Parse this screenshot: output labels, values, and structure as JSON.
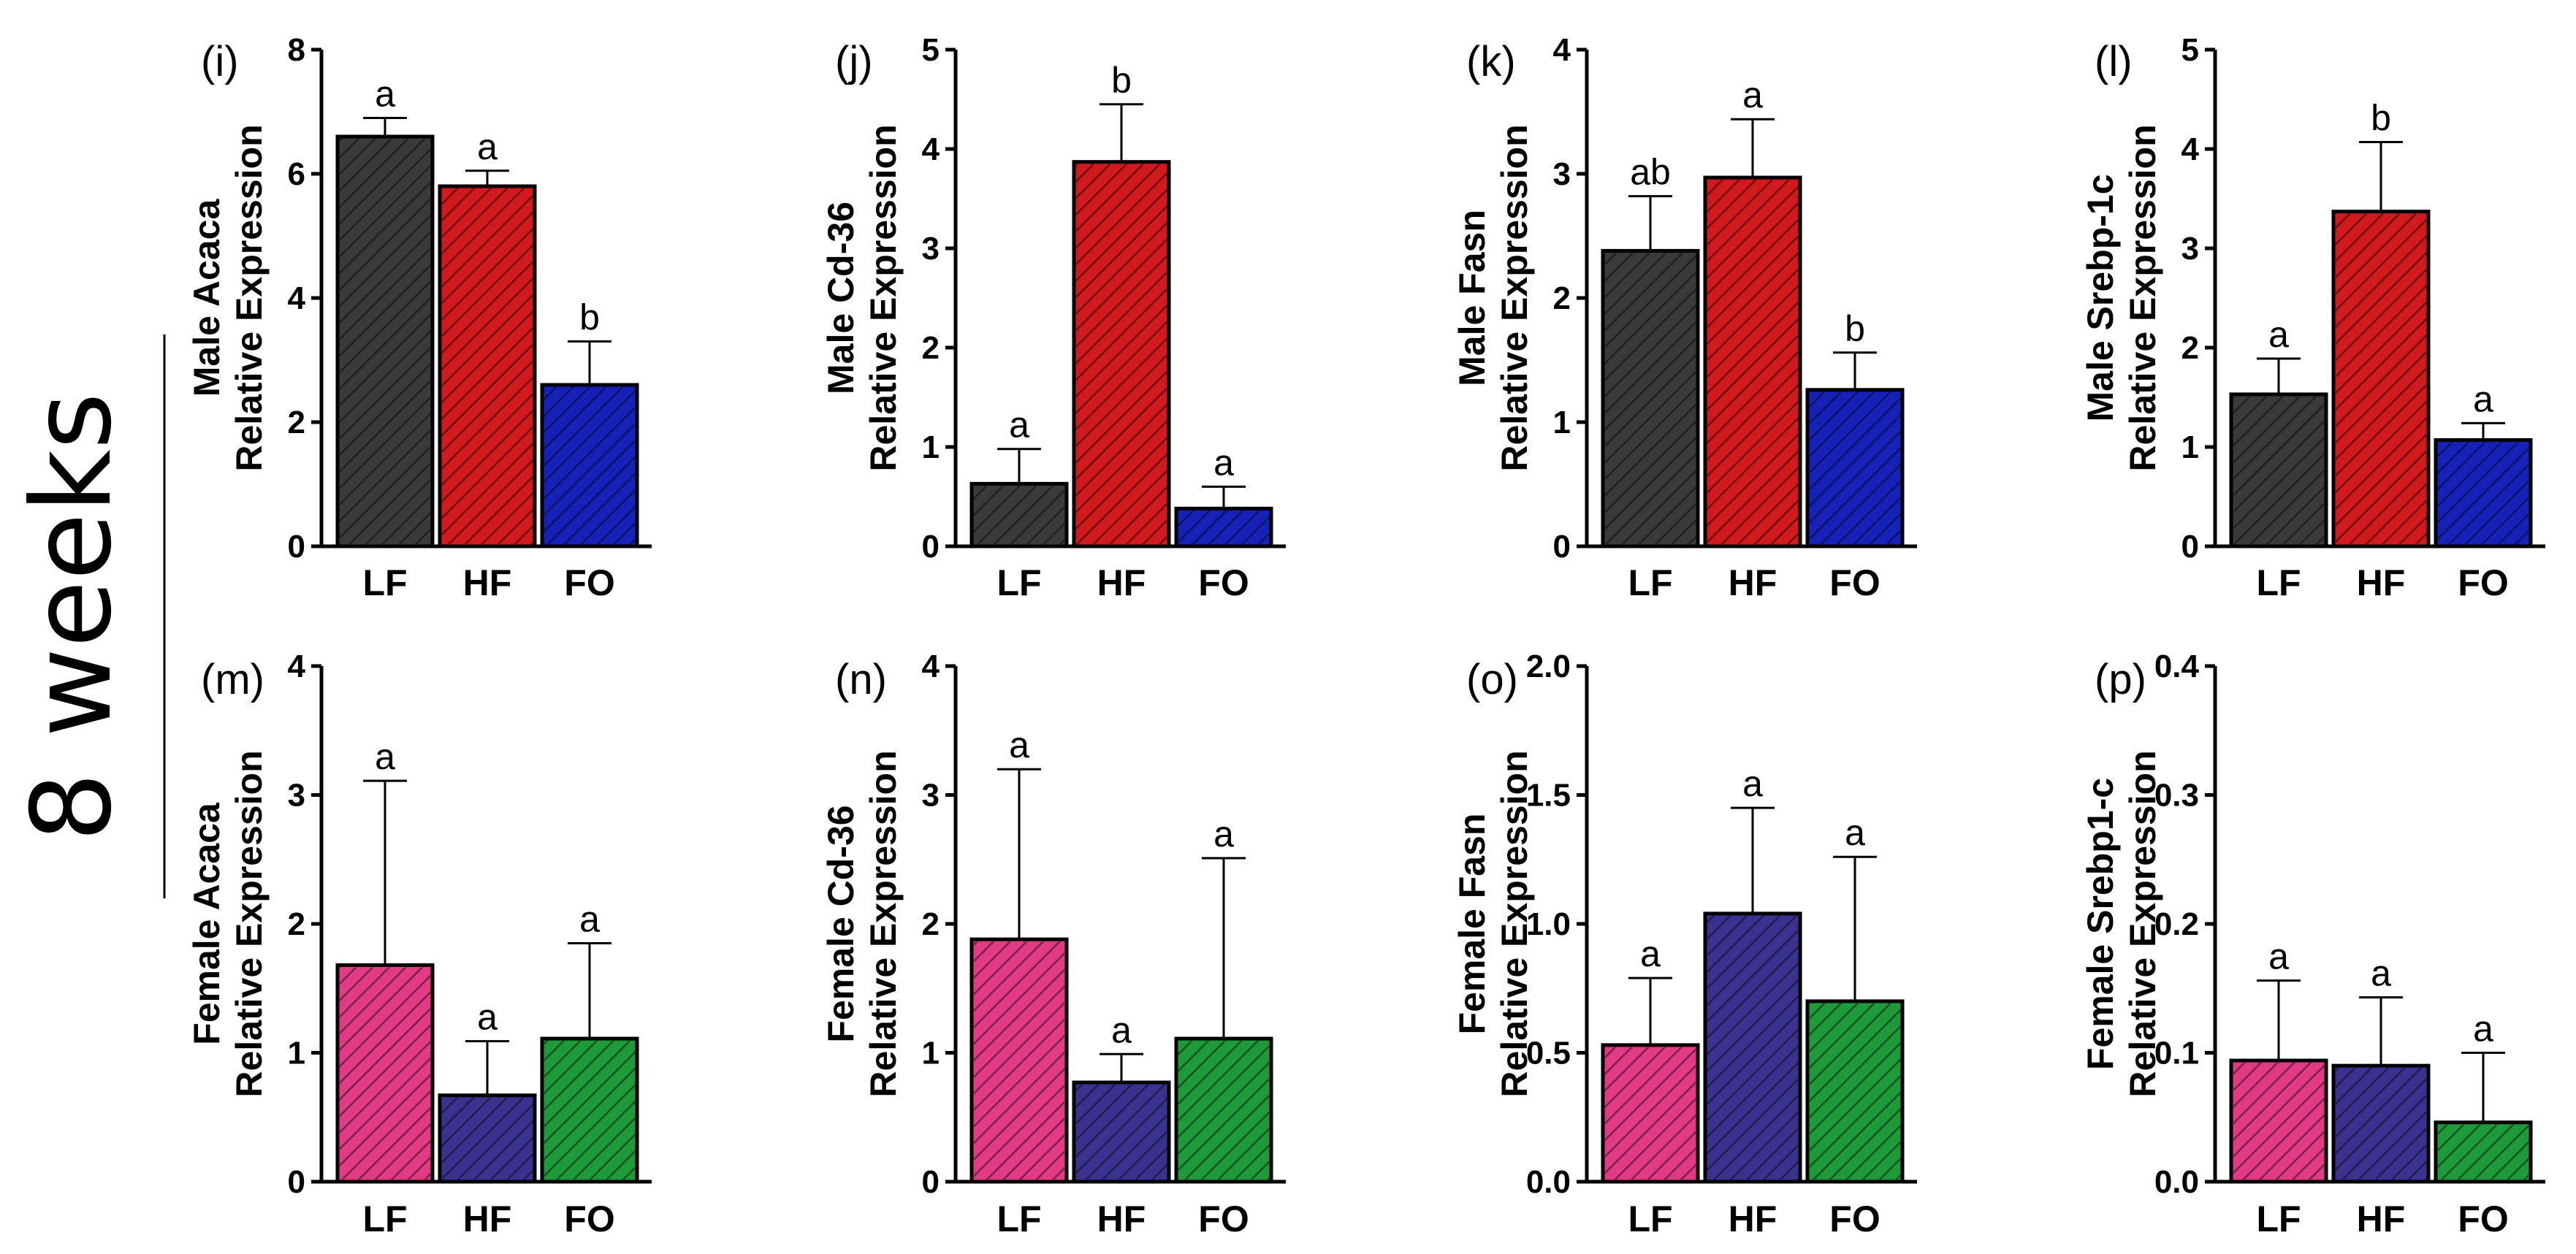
{
  "section_label": "8 weeks",
  "colors": {
    "LF_male": "#3a3a3a",
    "HF_male": "#d01a1e",
    "FO_male": "#1621b8",
    "LF_female": "#e23a85",
    "HF_female": "#39338f",
    "FO_female": "#1f9a38"
  },
  "chart_data": [
    {
      "id": "i",
      "type": "bar",
      "panel_label": "(i)",
      "ylabel_line1": "Male Acaca",
      "ylabel_line2": "Relative Expression",
      "categories": [
        "LF",
        "HF",
        "FO"
      ],
      "values": [
        6.6,
        5.8,
        2.6
      ],
      "errors": [
        0.3,
        0.25,
        0.7
      ],
      "letters": [
        "a",
        "a",
        "b"
      ],
      "ylim": [
        0,
        8
      ],
      "yticks": [
        "0",
        "2",
        "4",
        "6",
        "8"
      ],
      "sex": "male"
    },
    {
      "id": "j",
      "type": "bar",
      "panel_label": "(j)",
      "ylabel_line1": "Male Cd-36",
      "ylabel_line2": "Relative Expression",
      "categories": [
        "LF",
        "HF",
        "FO"
      ],
      "values": [
        0.63,
        3.87,
        0.38
      ],
      "errors": [
        0.35,
        0.58,
        0.22
      ],
      "letters": [
        "a",
        "b",
        "a"
      ],
      "ylim": [
        0,
        5
      ],
      "yticks": [
        "0",
        "1",
        "2",
        "3",
        "4",
        "5"
      ],
      "sex": "male"
    },
    {
      "id": "k",
      "type": "bar",
      "panel_label": "(k)",
      "ylabel_line1": "Male Fasn",
      "ylabel_line2": "Relative Expression",
      "categories": [
        "LF",
        "HF",
        "FO"
      ],
      "values": [
        2.38,
        2.97,
        1.26
      ],
      "errors": [
        0.44,
        0.47,
        0.3
      ],
      "letters": [
        "ab",
        "a",
        "b"
      ],
      "ylim": [
        0,
        4
      ],
      "yticks": [
        "0",
        "1",
        "2",
        "3",
        "4"
      ],
      "sex": "male"
    },
    {
      "id": "l",
      "type": "bar",
      "panel_label": "(l)",
      "ylabel_line1": "Male Srebp-1c",
      "ylabel_line2": "Relative Expression",
      "categories": [
        "LF",
        "HF",
        "FO"
      ],
      "values": [
        1.53,
        3.37,
        1.07
      ],
      "errors": [
        0.36,
        0.7,
        0.17
      ],
      "letters": [
        "a",
        "b",
        "a"
      ],
      "ylim": [
        0,
        5
      ],
      "yticks": [
        "0",
        "1",
        "2",
        "3",
        "4",
        "5"
      ],
      "sex": "male"
    },
    {
      "id": "m",
      "type": "bar",
      "panel_label": "(m)",
      "ylabel_line1": "Female Acaca",
      "ylabel_line2": "Relative Expression",
      "categories": [
        "LF",
        "HF",
        "FO"
      ],
      "values": [
        1.68,
        0.67,
        1.11
      ],
      "errors": [
        1.43,
        0.42,
        0.74
      ],
      "letters": [
        "a",
        "a",
        "a"
      ],
      "ylim": [
        0,
        4
      ],
      "yticks": [
        "0",
        "1",
        "2",
        "3",
        "4"
      ],
      "sex": "female"
    },
    {
      "id": "n",
      "type": "bar",
      "panel_label": "(n)",
      "ylabel_line1": "Female Cd-36",
      "ylabel_line2": "Relative Expression",
      "categories": [
        "LF",
        "HF",
        "FO"
      ],
      "values": [
        1.88,
        0.77,
        1.11
      ],
      "errors": [
        1.32,
        0.22,
        1.4
      ],
      "letters": [
        "a",
        "a",
        "a"
      ],
      "ylim": [
        0,
        4
      ],
      "yticks": [
        "0",
        "1",
        "2",
        "3",
        "4"
      ],
      "sex": "female"
    },
    {
      "id": "o",
      "type": "bar",
      "panel_label": "(o)",
      "ylabel_line1": "Female Fasn",
      "ylabel_line2": "Relative Expression",
      "categories": [
        "LF",
        "HF",
        "FO"
      ],
      "values": [
        0.53,
        1.04,
        0.7
      ],
      "errors": [
        0.26,
        0.41,
        0.56
      ],
      "letters": [
        "a",
        "a",
        "a"
      ],
      "ylim": [
        0,
        2
      ],
      "yticks": [
        "0.0",
        "0.5",
        "1.0",
        "1.5",
        "2.0"
      ],
      "sex": "female"
    },
    {
      "id": "p",
      "type": "bar",
      "panel_label": "(p)",
      "ylabel_line1": "Female Srebp1-c",
      "ylabel_line2": "Relative Expression",
      "categories": [
        "LF",
        "HF",
        "FO"
      ],
      "values": [
        0.094,
        0.09,
        0.046
      ],
      "errors": [
        0.062,
        0.053,
        0.054
      ],
      "letters": [
        "a",
        "a",
        "a"
      ],
      "ylim": [
        0,
        0.4
      ],
      "yticks": [
        "0.0",
        "0.1",
        "0.2",
        "0.3",
        "0.4"
      ],
      "sex": "female"
    }
  ]
}
